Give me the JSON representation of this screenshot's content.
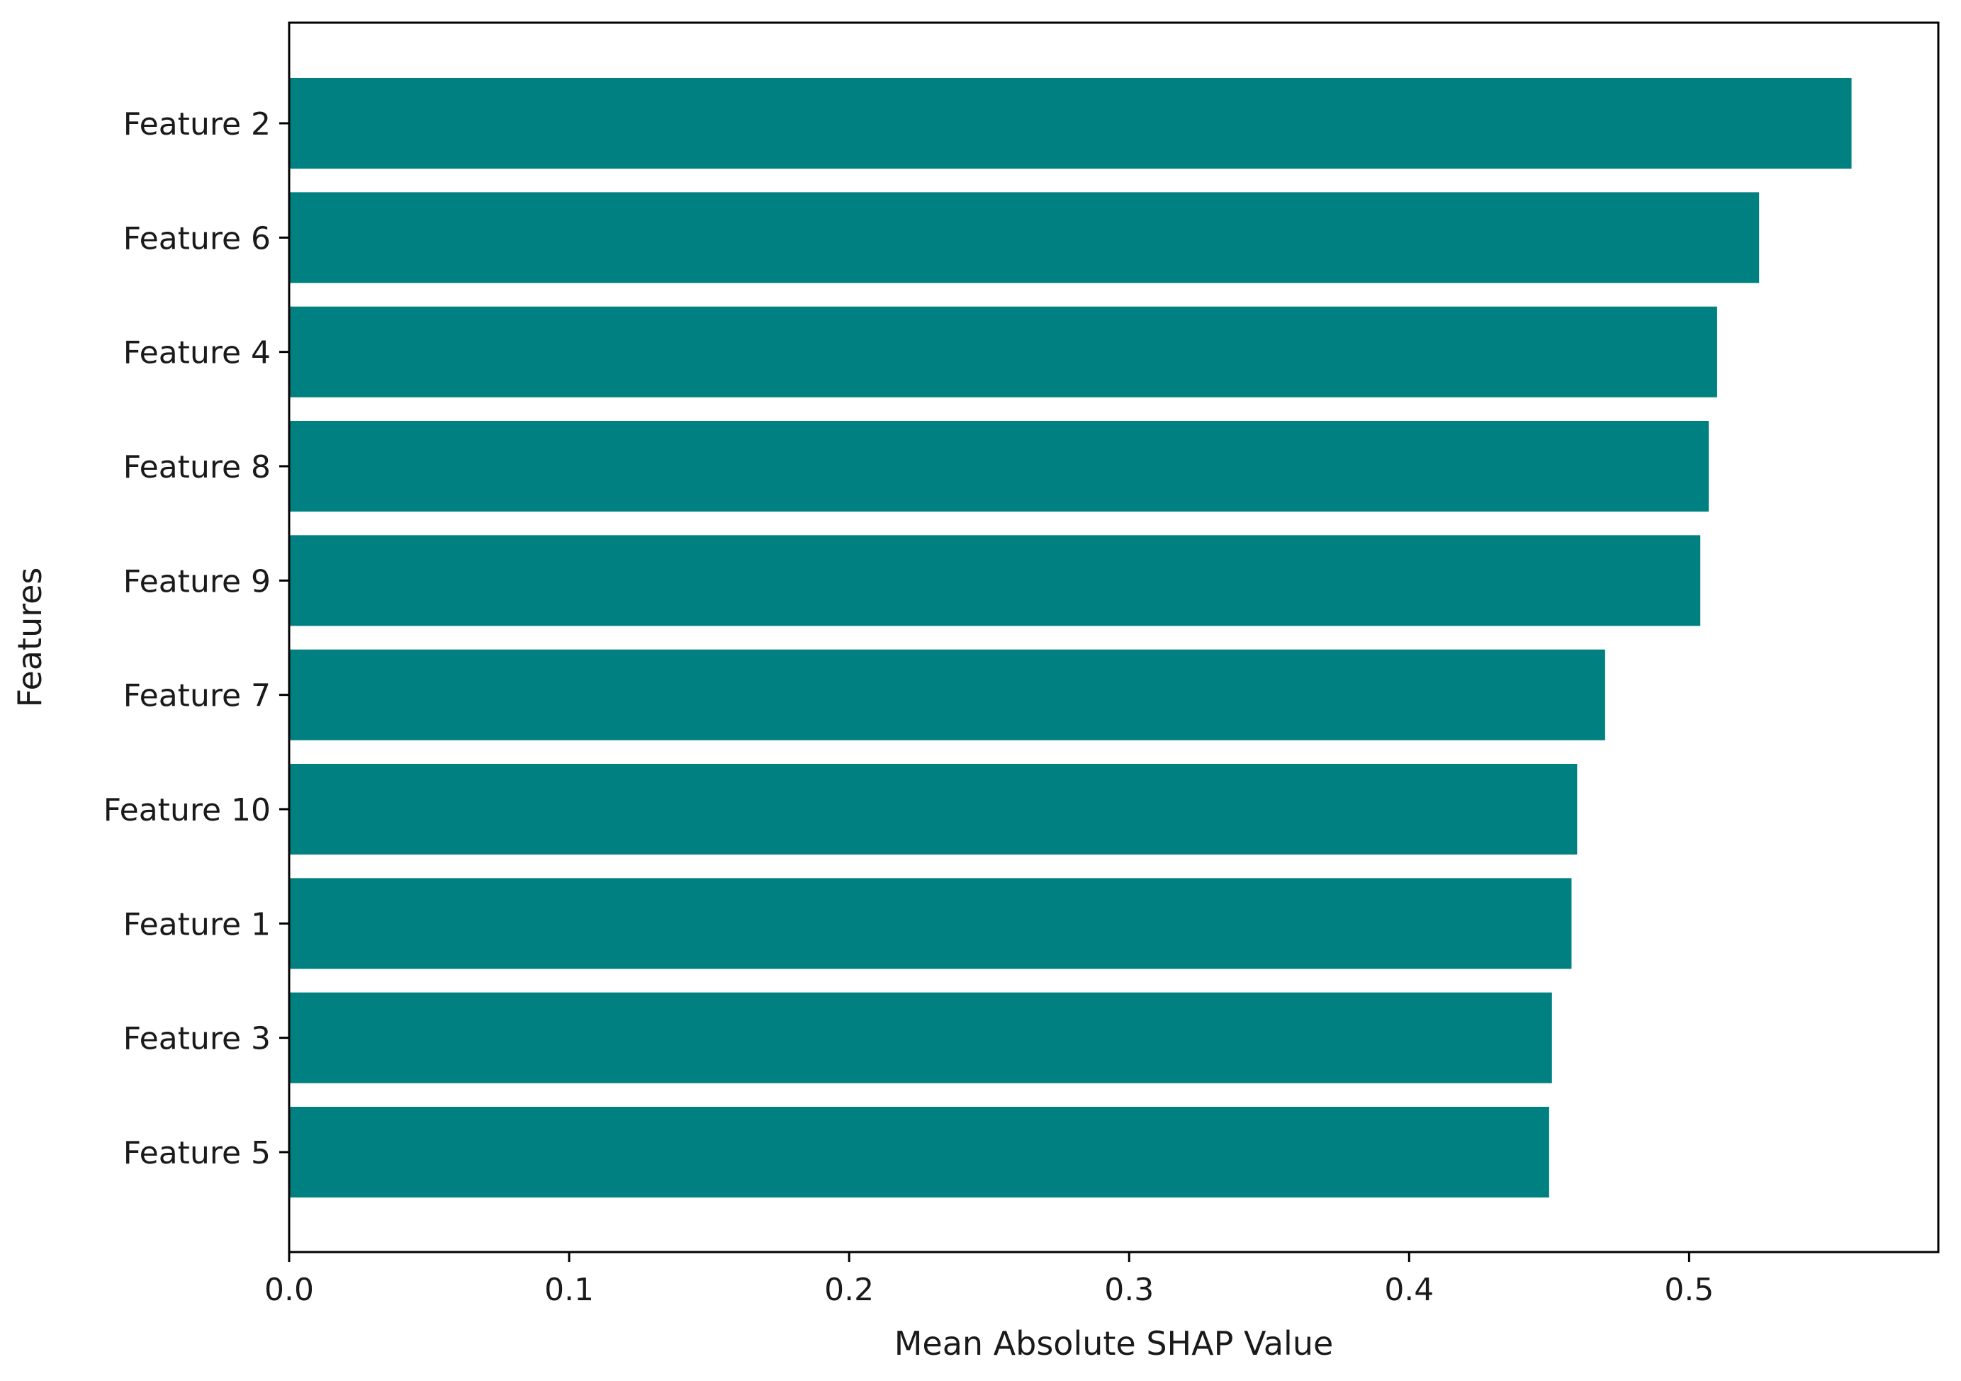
{
  "chart_data": {
    "type": "bar",
    "orientation": "horizontal",
    "title": "",
    "xlabel": "Mean Absolute SHAP Value",
    "ylabel": "Features",
    "categories": [
      "Feature 2",
      "Feature 6",
      "Feature 4",
      "Feature 8",
      "Feature 9",
      "Feature 7",
      "Feature 10",
      "Feature 1",
      "Feature 3",
      "Feature 5"
    ],
    "values": [
      0.558,
      0.525,
      0.51,
      0.507,
      0.504,
      0.47,
      0.46,
      0.458,
      0.451,
      0.45
    ],
    "xlim": [
      0,
      0.589
    ],
    "xticks": [
      0.0,
      0.1,
      0.2,
      0.3,
      0.4,
      0.5
    ],
    "xtick_labels": [
      "0.0",
      "0.1",
      "0.2",
      "0.3",
      "0.4",
      "0.5"
    ],
    "bar_color": "#008080",
    "grid": false,
    "legend": "none"
  }
}
